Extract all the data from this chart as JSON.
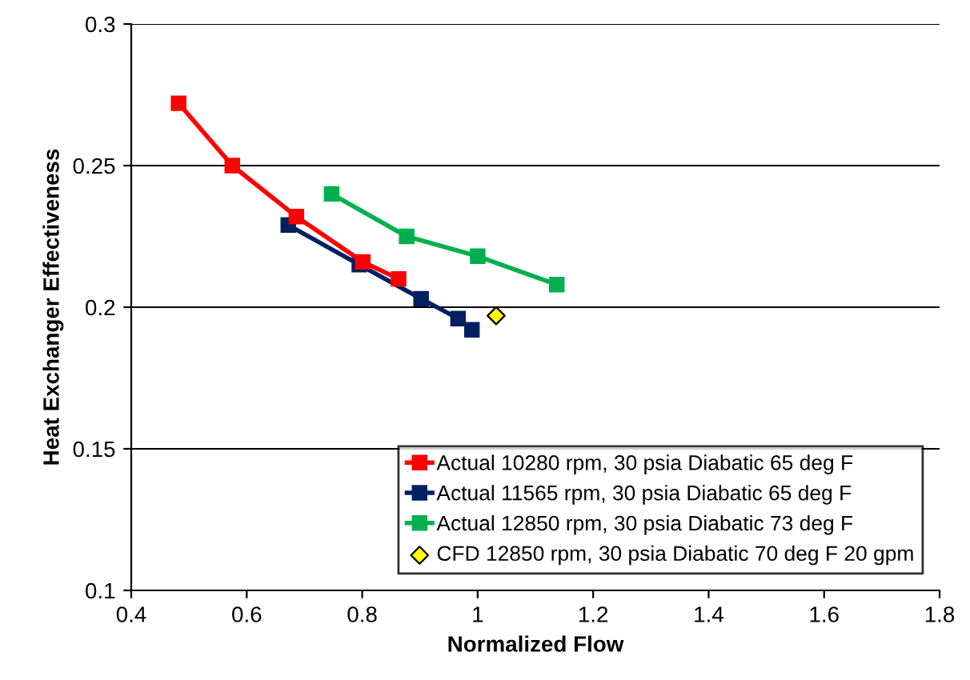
{
  "chart_data": {
    "type": "line",
    "xlabel": "Normalized Flow",
    "ylabel": "Heat Exchanger Effectiveness",
    "xlim": [
      0.4,
      1.8
    ],
    "xticks": [
      0.4,
      0.6,
      0.8,
      1,
      1.2,
      1.4,
      1.6,
      1.8
    ],
    "ylim": [
      0.1,
      0.3
    ],
    "yticks": [
      0.1,
      0.15,
      0.2,
      0.25,
      0.3
    ],
    "grid": "y",
    "legend": "bottom right",
    "marker": "square",
    "series": [
      {
        "name": "Actual 10280 rpm, 30 psia Diabatic 65 deg F",
        "color": "#ff0000",
        "x": [
          0.482,
          0.575,
          0.686,
          0.801,
          0.863
        ],
        "values": [
          0.272,
          0.25,
          0.232,
          0.216,
          0.21
        ]
      },
      {
        "name": "Actual 11565 rpm, 30 psia Diabatic 65 deg F",
        "color": "#002060",
        "x": [
          0.672,
          0.795,
          0.902,
          0.966,
          0.99
        ],
        "values": [
          0.229,
          0.215,
          0.203,
          0.196,
          0.192
        ]
      },
      {
        "name": "Actual 12850 rpm, 30 psia Diabatic 73 deg F",
        "color": "#00b050",
        "x": [
          0.747,
          0.877,
          1.0,
          1.137
        ],
        "values": [
          0.24,
          0.225,
          0.218,
          0.208
        ]
      },
      {
        "name": "CFD 12850 rpm, 30 psia Diabatic 70 deg F 20 gpm",
        "color": "#ffff00",
        "type": "scatter",
        "marker": "diamond",
        "x": [
          1.032
        ],
        "values": [
          0.197
        ]
      }
    ]
  }
}
